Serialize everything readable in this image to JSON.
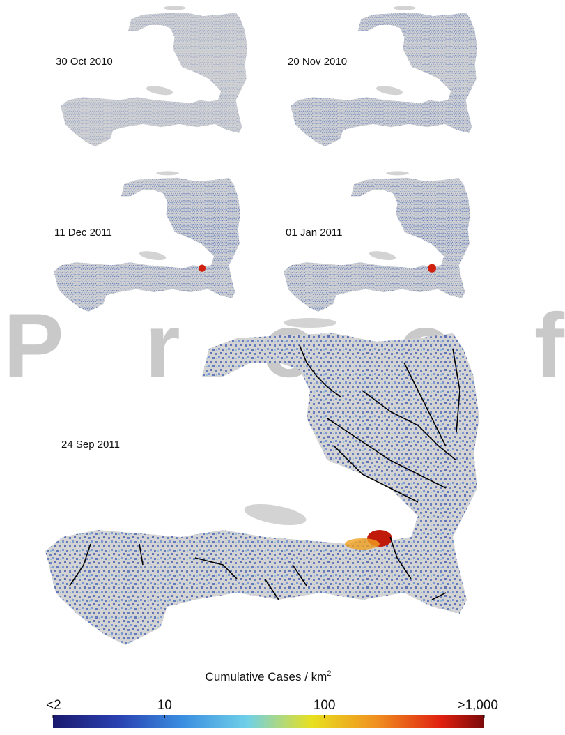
{
  "watermark": "Proof",
  "panels": [
    {
      "label": "30 Oct 2010"
    },
    {
      "label": "20 Nov 2010"
    },
    {
      "label": "11 Dec 2011"
    },
    {
      "label": "01 Jan 2011"
    },
    {
      "label": "24 Sep 2011"
    }
  ],
  "colorbar": {
    "title": "Cumulative Cases / km",
    "title_superscript": "2",
    "scale": "log",
    "range": [
      2,
      1000
    ],
    "ticks": [
      {
        "value": 2,
        "label": "<2"
      },
      {
        "value": 10,
        "label": "10"
      },
      {
        "value": 100,
        "label": "100"
      },
      {
        "value": 1000,
        "label": ">1,000"
      }
    ]
  }
}
